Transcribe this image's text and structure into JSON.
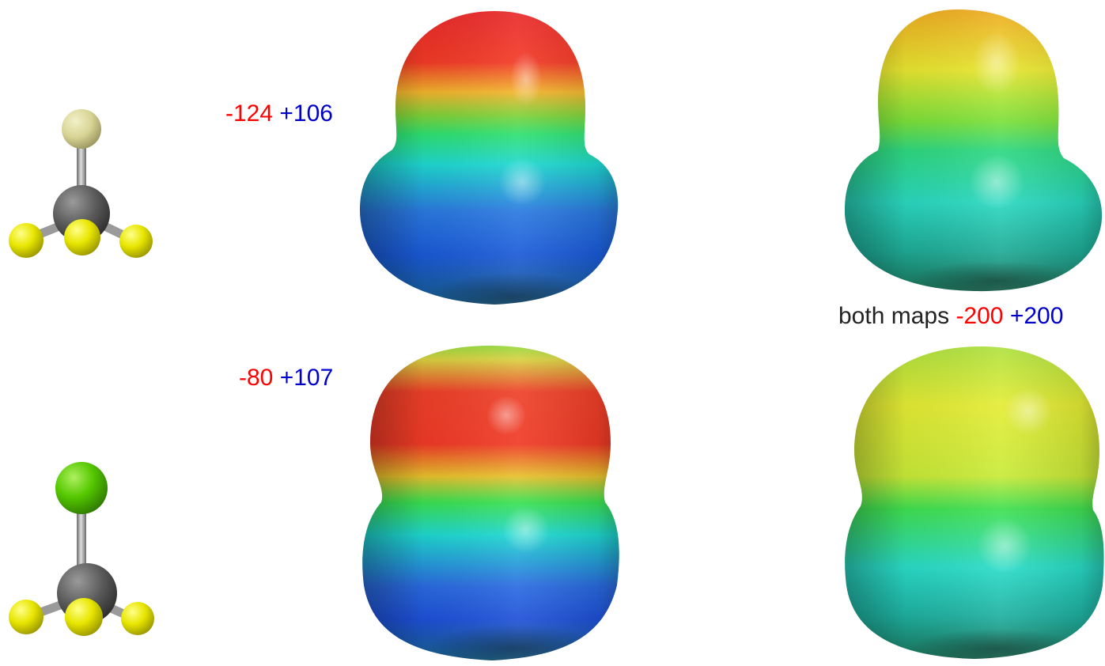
{
  "rows": [
    {
      "range_min": "-124",
      "range_max": "+106"
    },
    {
      "range_min": "-80",
      "range_max": "+107"
    }
  ],
  "caption": {
    "prefix": "both maps",
    "range_min": "-200",
    "range_max": "+200"
  },
  "colors": {
    "negative": "#ff0000",
    "positive": "#0000cc",
    "carbon": "#5a5a5a",
    "fluorine": "#e8e600",
    "halogen_top_row": "#d8d495",
    "halogen_bottom_row": "#55c800",
    "bond": "#a8a8a8"
  }
}
